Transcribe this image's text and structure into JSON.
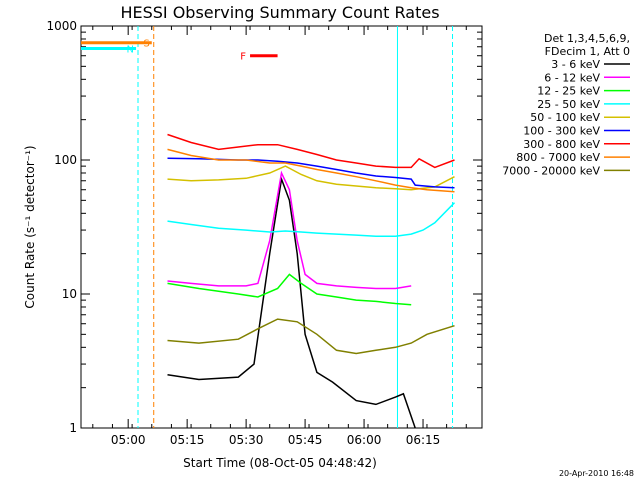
{
  "chart_data": {
    "type": "line",
    "title": "HESSI Observing Summary Count Rates",
    "xlabel": "Start Time (08-Oct-05 04:48:42)",
    "ylabel": "Count Rate (s⁻¹ detector⁻¹)",
    "yscale": "log",
    "ylim": [
      1,
      1000
    ],
    "xlim_minutes": [
      0,
      102
    ],
    "yticks": [
      "1",
      "10",
      "100",
      "1000"
    ],
    "xticks": [
      {
        "min": 12,
        "label": "05:00"
      },
      {
        "min": 27,
        "label": "05:15"
      },
      {
        "min": 42,
        "label": "05:30"
      },
      {
        "min": 57,
        "label": "05:45"
      },
      {
        "min": 72,
        "label": "06:00"
      },
      {
        "min": 87,
        "label": "06:15"
      }
    ],
    "legend_header": [
      "Det 1,3,4,5,6,9,",
      "FDecim 1, Att 0"
    ],
    "legend_position": "right",
    "grid": false,
    "series": [
      {
        "name": "3 - 6 keV",
        "color": "#000000",
        "x": [
          22,
          30,
          40,
          44,
          48,
          51,
          53,
          55,
          57,
          60,
          64,
          70,
          75,
          80,
          82,
          85
        ],
        "y": [
          2.5,
          2.3,
          2.4,
          3,
          20,
          72,
          50,
          20,
          5,
          2.6,
          2.2,
          1.6,
          1.5,
          1.7,
          1.8,
          1
        ]
      },
      {
        "name": "6 - 12 keV",
        "color": "#ff00ff",
        "x": [
          22,
          28,
          35,
          42,
          45,
          48,
          51,
          53,
          55,
          57,
          60,
          65,
          70,
          75,
          80,
          84
        ],
        "y": [
          12.5,
          12,
          11.5,
          11.5,
          12,
          25,
          80,
          60,
          25,
          14,
          12,
          11.5,
          11.2,
          11,
          11,
          11.5
        ]
      },
      {
        "name": "12 - 25 keV",
        "color": "#00ff00",
        "x": [
          22,
          30,
          40,
          45,
          50,
          53,
          56,
          60,
          65,
          70,
          75,
          80,
          84
        ],
        "y": [
          12,
          11,
          10,
          9.5,
          11,
          14,
          12,
          10,
          9.5,
          9,
          8.8,
          8.5,
          8.3
        ]
      },
      {
        "name": "25 - 50 keV",
        "color": "#00ffff",
        "x": [
          22,
          28,
          35,
          42,
          48,
          52,
          56,
          60,
          65,
          70,
          75,
          80,
          84,
          87,
          90,
          95
        ],
        "y": [
          35,
          33,
          31,
          30,
          29,
          29.5,
          29,
          28.5,
          28,
          27.5,
          27,
          27,
          28,
          30,
          34,
          48
        ]
      },
      {
        "name": "50 - 100 keV",
        "color": "#d4c000",
        "x": [
          22,
          28,
          35,
          42,
          48,
          52,
          56,
          60,
          65,
          70,
          75,
          80,
          84,
          90,
          95
        ],
        "y": [
          72,
          70,
          71,
          73,
          80,
          90,
          78,
          70,
          66,
          64,
          62,
          61,
          60,
          63,
          75
        ]
      },
      {
        "name": "100 - 300 keV",
        "color": "#0000ff",
        "x": [
          22,
          30,
          40,
          45,
          50,
          55,
          60,
          65,
          70,
          75,
          80,
          84,
          85,
          90,
          95
        ],
        "y": [
          103,
          102,
          100,
          100,
          98,
          95,
          90,
          85,
          80,
          76,
          74,
          72,
          65,
          63,
          62
        ]
      },
      {
        "name": "300 - 800 keV",
        "color": "#ff0000",
        "x": [
          22,
          28,
          35,
          40,
          45,
          50,
          55,
          60,
          65,
          70,
          75,
          80,
          84,
          86,
          90,
          95
        ],
        "y": [
          155,
          135,
          120,
          125,
          130,
          130,
          120,
          110,
          100,
          95,
          90,
          88,
          88,
          102,
          88,
          100
        ]
      },
      {
        "name": "800 - 7000 keV",
        "color": "#ff8000",
        "x": [
          22,
          28,
          35,
          42,
          48,
          52,
          56,
          60,
          65,
          70,
          75,
          80,
          84,
          88,
          95
        ],
        "y": [
          120,
          108,
          100,
          100,
          95,
          95,
          90,
          85,
          80,
          75,
          70,
          65,
          62,
          60,
          58
        ]
      },
      {
        "name": "7000 - 20000 keV",
        "color": "#808000",
        "x": [
          22,
          30,
          40,
          45,
          50,
          55,
          60,
          65,
          70,
          75,
          80,
          84,
          88,
          95
        ],
        "y": [
          4.5,
          4.3,
          4.6,
          5.5,
          6.5,
          6.2,
          5,
          3.8,
          3.6,
          3.8,
          4,
          4.3,
          5,
          5.8
        ]
      }
    ],
    "annotations": [
      {
        "label": "S",
        "color": "#ff8000",
        "x": [
          0,
          18
        ],
        "y": 750
      },
      {
        "label": "N",
        "color": "#00ffff",
        "x": [
          0,
          14
        ],
        "y": 680
      },
      {
        "label": "F",
        "color": "#ff0000",
        "x": [
          43,
          50
        ],
        "y": 600
      }
    ],
    "vertical_markers": [
      {
        "min": 14.5,
        "color": "#00ffff",
        "style": "dashed"
      },
      {
        "min": 18.5,
        "color": "#ff8000",
        "style": "dashed"
      },
      {
        "min": 80.5,
        "color": "#00ffff",
        "style": "solid"
      },
      {
        "min": 94.5,
        "color": "#00ffff",
        "style": "dashed"
      }
    ],
    "footer": "20-Apr-2010 16:48"
  }
}
